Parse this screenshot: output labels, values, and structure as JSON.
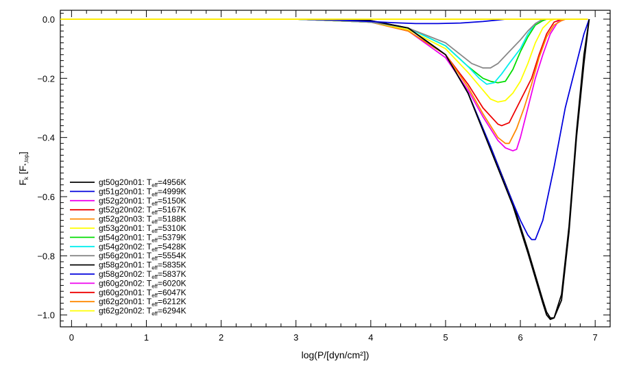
{
  "chart_data": {
    "type": "line",
    "xlabel": "log(P/[dyn/cm²])",
    "ylabel_main": "F",
    "ylabel_sub": "k",
    "ylabel_unit_main": "[F",
    "ylabel_unit_sub": "*,top",
    "ylabel_unit_close": "]",
    "xlim": [
      -0.15,
      7.2
    ],
    "ylim": [
      -1.04,
      0.03
    ],
    "xticks": [
      0,
      1,
      2,
      3,
      4,
      5,
      6,
      7
    ],
    "xtick_labels": [
      "0",
      "1",
      "2",
      "3",
      "4",
      "5",
      "6",
      "7"
    ],
    "yticks": [
      0.0,
      -0.2,
      -0.4,
      -0.6,
      -0.8,
      -1.0
    ],
    "ytick_labels": [
      "0.0",
      "−0.2",
      "−0.4",
      "−0.6",
      "−0.8",
      "−1.0"
    ],
    "legend_position": "bottom-left",
    "series": [
      {
        "name": "gt50g20n01",
        "teff": "=4956K",
        "color": "#000000",
        "x": [
          -0.2,
          3.5,
          4.0,
          4.5,
          5.0,
          5.3,
          5.6,
          5.9,
          6.1,
          6.3,
          6.35,
          6.4,
          6.45,
          6.55,
          6.65,
          6.75,
          6.85,
          6.92
        ],
        "y": [
          0.0,
          0.0,
          -0.005,
          -0.03,
          -0.12,
          -0.25,
          -0.43,
          -0.62,
          -0.78,
          -0.95,
          -0.99,
          -1.01,
          -1.01,
          -0.95,
          -0.72,
          -0.4,
          -0.15,
          0.0
        ]
      },
      {
        "name": "gt51g20n01",
        "teff": "=4999K",
        "color": "#0000dd",
        "x": [
          -0.2,
          3.5,
          4.0,
          4.5,
          5.0,
          5.3,
          5.6,
          5.8,
          6.0,
          6.1,
          6.15,
          6.2,
          6.3,
          6.45,
          6.6,
          6.75,
          6.85,
          6.92
        ],
        "y": [
          0.0,
          0.0,
          -0.005,
          -0.03,
          -0.12,
          -0.25,
          -0.43,
          -0.56,
          -0.68,
          -0.73,
          -0.745,
          -0.745,
          -0.68,
          -0.5,
          -0.3,
          -0.15,
          -0.05,
          0.0
        ]
      },
      {
        "name": "gt52g20n01",
        "teff": "=5150K",
        "color": "#ee00ee",
        "x": [
          -0.2,
          3.0,
          4.0,
          4.5,
          5.0,
          5.3,
          5.5,
          5.7,
          5.8,
          5.9,
          5.95,
          6.0,
          6.1,
          6.2,
          6.3,
          6.4,
          6.5,
          6.6
        ],
        "y": [
          0.0,
          0.0,
          -0.01,
          -0.04,
          -0.13,
          -0.24,
          -0.33,
          -0.41,
          -0.435,
          -0.445,
          -0.44,
          -0.4,
          -0.3,
          -0.2,
          -0.12,
          -0.05,
          -0.01,
          0.0
        ]
      },
      {
        "name": "gt52g20n02",
        "teff": "=5167K",
        "color": "#ee0000",
        "x": [
          -0.2,
          3.0,
          4.0,
          4.5,
          5.0,
          5.3,
          5.5,
          5.7,
          5.75,
          5.85,
          5.95,
          6.05,
          6.15,
          6.25,
          6.35,
          6.45,
          6.55
        ],
        "y": [
          0.0,
          0.0,
          -0.01,
          -0.04,
          -0.12,
          -0.22,
          -0.3,
          -0.355,
          -0.36,
          -0.35,
          -0.3,
          -0.25,
          -0.2,
          -0.12,
          -0.05,
          -0.01,
          0.0
        ]
      },
      {
        "name": "gt52g20n03",
        "teff": "=5188K",
        "color": "#ff8800",
        "x": [
          -0.2,
          3.0,
          4.0,
          4.5,
          5.0,
          5.3,
          5.5,
          5.7,
          5.8,
          5.85,
          5.95,
          6.05,
          6.15,
          6.25,
          6.35,
          6.45,
          6.55,
          6.6
        ],
        "y": [
          0.0,
          0.0,
          -0.01,
          -0.04,
          -0.12,
          -0.23,
          -0.32,
          -0.4,
          -0.42,
          -0.42,
          -0.37,
          -0.3,
          -0.22,
          -0.13,
          -0.06,
          -0.02,
          -0.005,
          0.0
        ]
      },
      {
        "name": "gt53g20n01",
        "teff": "=5310K",
        "color": "#ffff00",
        "x": [
          -0.2,
          3.0,
          4.0,
          4.5,
          5.0,
          5.3,
          5.5,
          5.6,
          5.7,
          5.8,
          5.9,
          6.0,
          6.1,
          6.2,
          6.3,
          6.4,
          6.45
        ],
        "y": [
          0.0,
          0.0,
          -0.01,
          -0.035,
          -0.1,
          -0.18,
          -0.24,
          -0.27,
          -0.28,
          -0.275,
          -0.25,
          -0.21,
          -0.15,
          -0.08,
          -0.03,
          -0.005,
          0.0
        ]
      },
      {
        "name": "gt54g20n01",
        "teff": "=5379K",
        "color": "#00dd00",
        "x": [
          -0.2,
          3.0,
          4.0,
          4.5,
          5.0,
          5.3,
          5.5,
          5.6,
          5.7,
          5.8,
          5.9,
          6.0,
          6.1,
          6.2,
          6.3,
          6.35
        ],
        "y": [
          0.0,
          0.0,
          -0.01,
          -0.03,
          -0.09,
          -0.16,
          -0.2,
          -0.21,
          -0.215,
          -0.21,
          -0.17,
          -0.11,
          -0.06,
          -0.02,
          -0.005,
          0.0
        ]
      },
      {
        "name": "gt54g20n02",
        "teff": "=5428K",
        "color": "#00eeee",
        "x": [
          -0.2,
          3.0,
          4.0,
          4.5,
          5.0,
          5.3,
          5.45,
          5.55,
          5.65,
          5.75,
          5.85,
          6.0,
          6.1,
          6.2,
          6.3
        ],
        "y": [
          0.0,
          0.0,
          -0.01,
          -0.03,
          -0.09,
          -0.16,
          -0.2,
          -0.22,
          -0.215,
          -0.185,
          -0.15,
          -0.1,
          -0.05,
          -0.015,
          0.0
        ]
      },
      {
        "name": "gt56g20n01",
        "teff": "=5554K",
        "color": "#888888",
        "x": [
          -0.2,
          3.0,
          4.0,
          4.5,
          5.0,
          5.2,
          5.35,
          5.5,
          5.6,
          5.7,
          5.85,
          6.0,
          6.1,
          6.2,
          6.3
        ],
        "y": [
          0.0,
          0.0,
          -0.01,
          -0.03,
          -0.08,
          -0.12,
          -0.15,
          -0.165,
          -0.165,
          -0.15,
          -0.11,
          -0.07,
          -0.04,
          -0.015,
          0.0
        ]
      },
      {
        "name": "gt58g20n01",
        "teff": "=5835K",
        "color": "#000000",
        "x": [
          -0.2,
          3.5,
          4.0,
          4.5,
          5.0,
          5.3,
          5.6,
          5.9,
          6.1,
          6.3,
          6.35,
          6.4,
          6.45,
          6.55,
          6.65,
          6.75,
          6.85,
          6.92
        ],
        "y": [
          0.0,
          0.0,
          -0.005,
          -0.03,
          -0.12,
          -0.25,
          -0.44,
          -0.63,
          -0.79,
          -0.96,
          -1.0,
          -1.015,
          -1.01,
          -0.93,
          -0.7,
          -0.38,
          -0.12,
          0.0
        ]
      },
      {
        "name": "gt58g20n02",
        "teff": "=5837K",
        "color": "#0000dd",
        "x": [
          -0.2,
          3.0,
          3.5,
          4.0,
          4.3,
          4.6,
          4.9,
          5.2,
          5.5,
          5.7,
          5.8,
          6.9
        ],
        "y": [
          0.0,
          0.0,
          -0.002,
          -0.008,
          -0.012,
          -0.015,
          -0.015,
          -0.013,
          -0.008,
          -0.003,
          0.0,
          0.0
        ]
      },
      {
        "name": "gt60g20n02",
        "teff": "=6020K",
        "color": "#ee00ee",
        "x": [
          -0.2,
          6.9
        ],
        "y": [
          0.0,
          0.0
        ]
      },
      {
        "name": "gt60g20n01",
        "teff": "=6047K",
        "color": "#ee0000",
        "x": [
          -0.2,
          6.9
        ],
        "y": [
          0.0,
          0.0
        ]
      },
      {
        "name": "gt62g20n01",
        "teff": "=6212K",
        "color": "#ff8800",
        "x": [
          -0.2,
          6.9
        ],
        "y": [
          0.0,
          0.0
        ]
      },
      {
        "name": "gt62g20n02",
        "teff": "=6294K",
        "color": "#ffff00",
        "x": [
          -0.2,
          6.9
        ],
        "y": [
          0.0,
          0.0
        ]
      }
    ]
  }
}
